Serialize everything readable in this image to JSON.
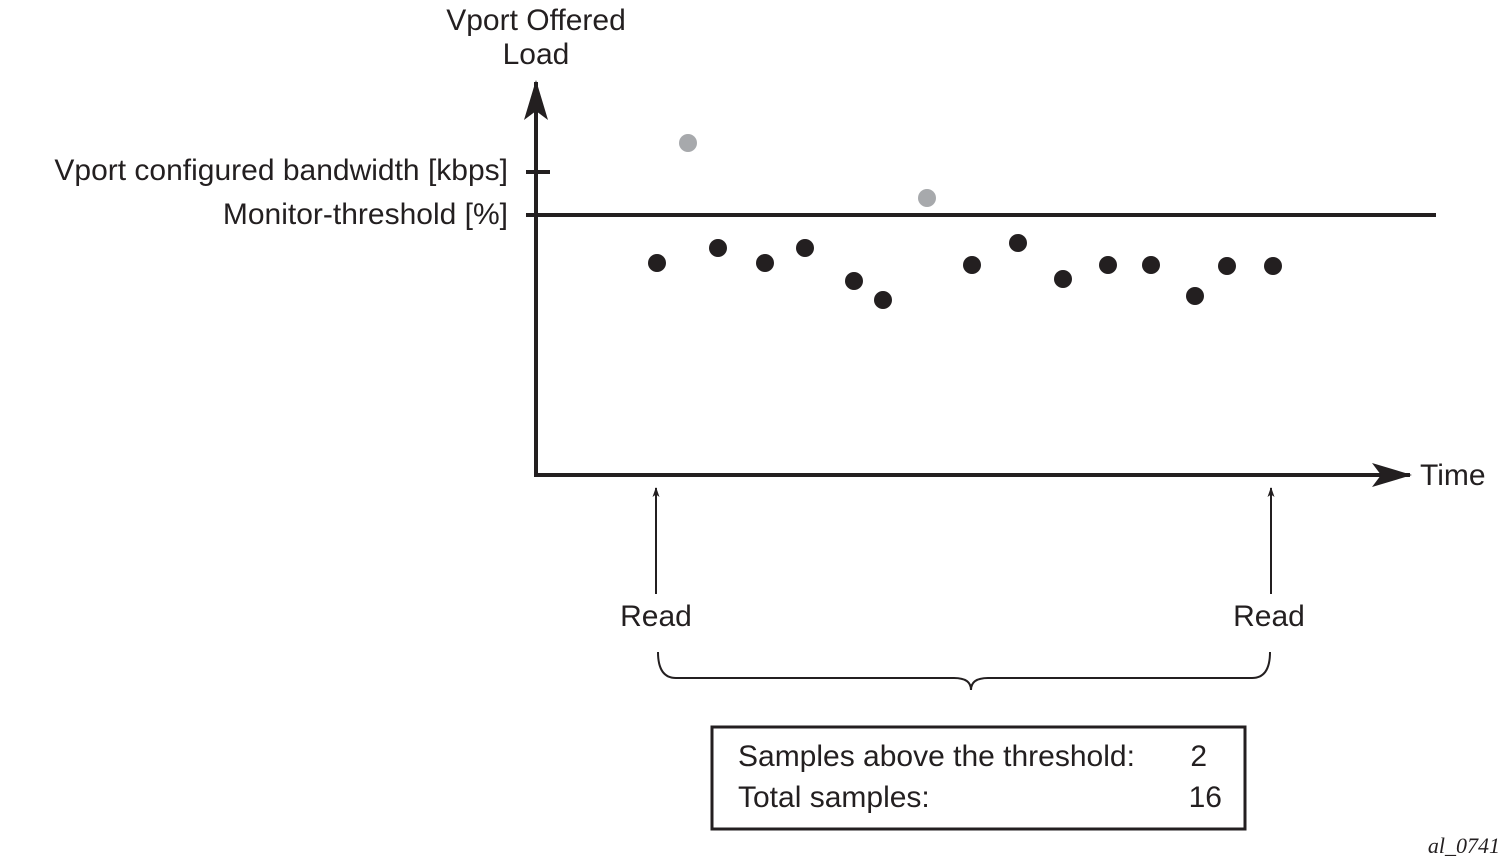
{
  "y_axis_label": [
    "Vport Offered",
    "Load"
  ],
  "x_axis_label": "Time",
  "levels": [
    "Vport configured bandwidth [kbps]",
    "Monitor-threshold [%]"
  ],
  "reads": [
    "Read",
    "Read"
  ],
  "summary": {
    "rows": [
      [
        "Samples above the threshold:",
        2
      ],
      [
        "Total samples:",
        16
      ]
    ]
  },
  "figure_id": "al_0741"
}
